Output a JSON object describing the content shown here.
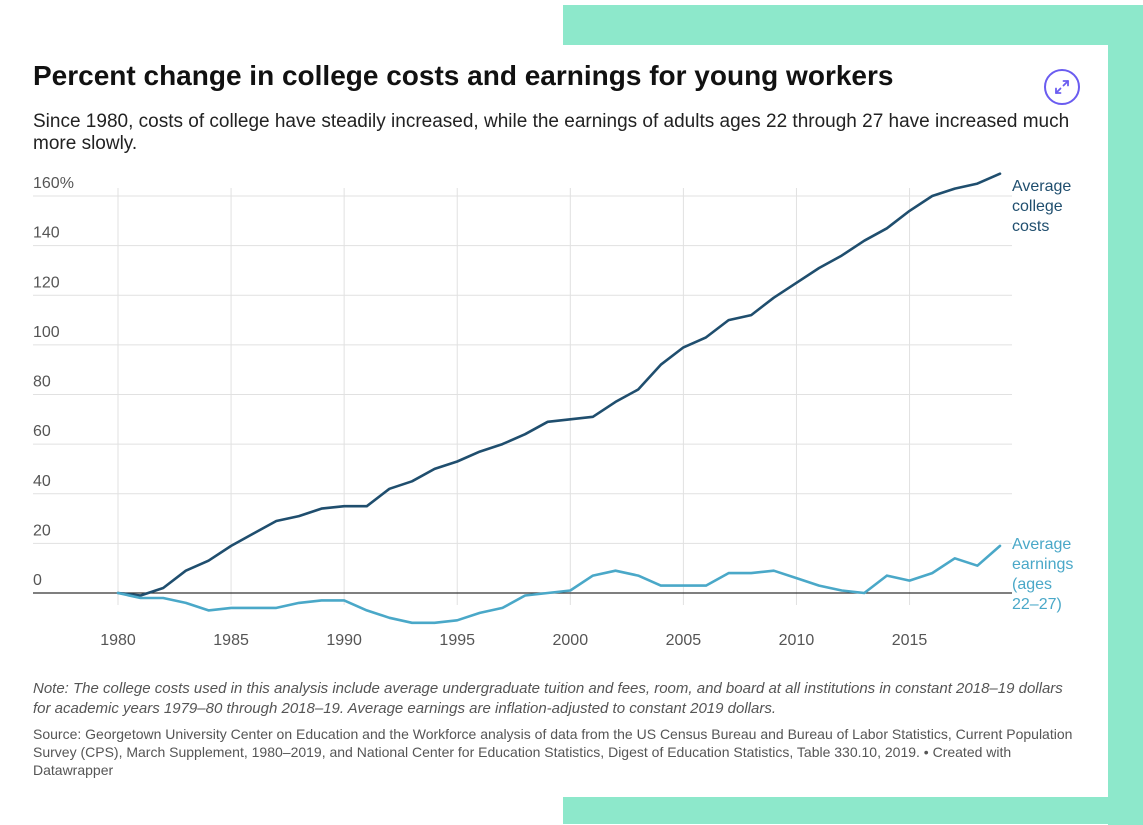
{
  "title": "Percent change in college costs and earnings for young workers",
  "subtitle": "Since 1980, costs of college have steadily increased, while the earnings of adults ages 22 through 27 have increased much more slowly.",
  "note": "Note: The college costs used in this analysis include average undergraduate tuition and fees, room, and board at all institutions in constant 2018–19 dollars for academic years 1979–80 through 2018–19. Average earnings are inflation-adjusted to constant 2019 dollars.",
  "source": "Source: Georgetown University Center on Education and the Workforce analysis of data from the US Census Bureau and Bureau of Labor Statistics, Current Population Survey (CPS), March Supplement, 1980–2019, and National Center for Education Statistics, Digest of Education Statistics, Table 330.10, 2019. • Created with Datawrapper",
  "expand_icon": "expand-arrows-icon",
  "colors": {
    "accent_panel": "#8de8cb",
    "college_costs": "#1f4e6e",
    "earnings": "#4aa8c8",
    "expand_button": "#6a5cf0"
  },
  "chart_data": {
    "type": "line",
    "title": "Percent change in college costs and earnings for young workers",
    "xlabel": "",
    "ylabel": "",
    "xlim": [
      1980,
      2019
    ],
    "ylim": [
      -12,
      170
    ],
    "x_ticks": [
      1980,
      1985,
      1990,
      1995,
      2000,
      2005,
      2010,
      2015
    ],
    "y_ticks": [
      0,
      20,
      40,
      60,
      80,
      100,
      120,
      140,
      160
    ],
    "y_tick_labels": [
      "0",
      "20",
      "40",
      "60",
      "80",
      "100",
      "120",
      "140",
      "160%"
    ],
    "x": [
      1980,
      1981,
      1982,
      1983,
      1984,
      1985,
      1986,
      1987,
      1988,
      1989,
      1990,
      1991,
      1992,
      1993,
      1994,
      1995,
      1996,
      1997,
      1998,
      1999,
      2000,
      2001,
      2002,
      2003,
      2004,
      2005,
      2006,
      2007,
      2008,
      2009,
      2010,
      2011,
      2012,
      2013,
      2014,
      2015,
      2016,
      2017,
      2018,
      2019
    ],
    "series": [
      {
        "name": "Average college costs",
        "label_lines": [
          "Average",
          "college",
          "costs"
        ],
        "values": [
          0,
          -1,
          2,
          9,
          13,
          19,
          24,
          29,
          31,
          34,
          35,
          35,
          42,
          45,
          50,
          53,
          57,
          60,
          64,
          69,
          70,
          71,
          77,
          82,
          92,
          99,
          103,
          110,
          112,
          119,
          125,
          131,
          136,
          142,
          147,
          154,
          160,
          163,
          165,
          169
        ]
      },
      {
        "name": "Average earnings (ages 22–27)",
        "label_lines": [
          "Average",
          "earnings",
          "(ages",
          "22–27)"
        ],
        "values": [
          0,
          -2,
          -2,
          -4,
          -7,
          -6,
          -6,
          -6,
          -4,
          -3,
          -3,
          -7,
          -10,
          -12,
          -12,
          -11,
          -8,
          -6,
          -1,
          0,
          1,
          7,
          9,
          7,
          3,
          3,
          3,
          8,
          8,
          9,
          6,
          3,
          1,
          0,
          7,
          5,
          8,
          14,
          11,
          19
        ]
      }
    ],
    "grid": true,
    "legend": "direct labels at right end of lines"
  }
}
